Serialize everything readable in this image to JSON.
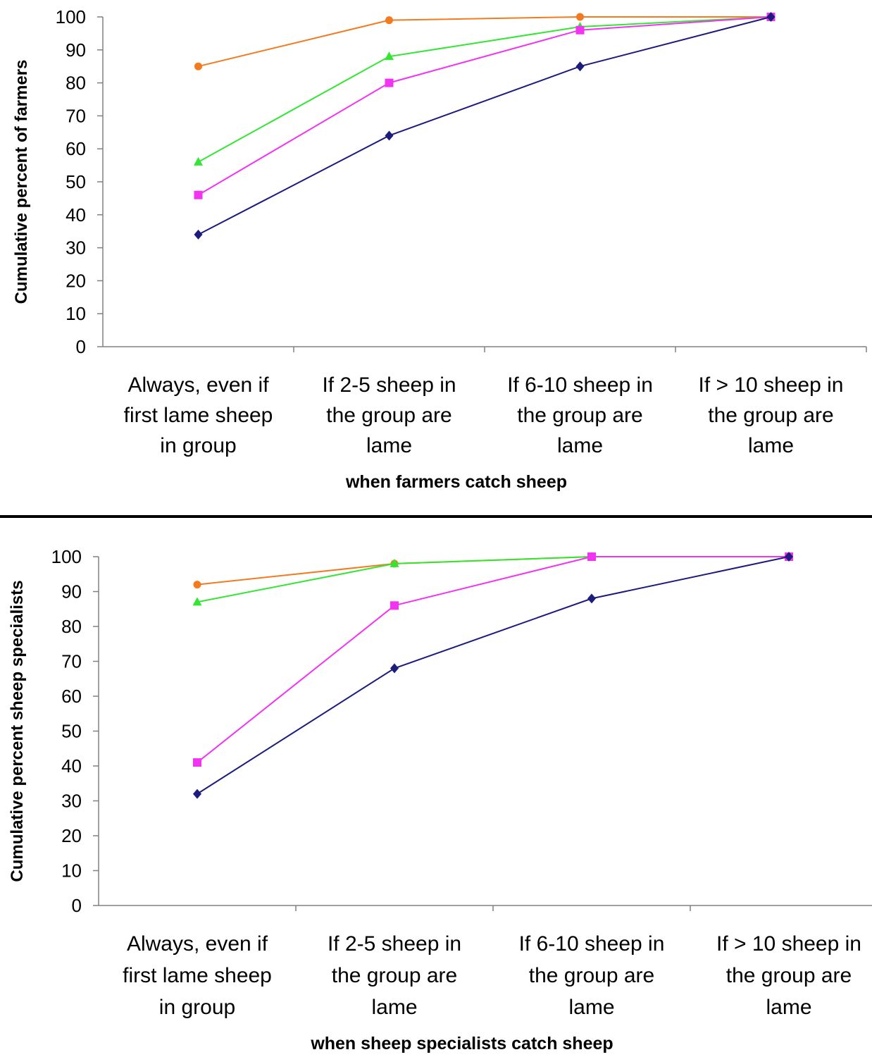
{
  "chart_data": [
    {
      "type": "line",
      "xlabel": "when farmers catch sheep",
      "ylabel": "Cumulative percent of farmers",
      "ylim": [
        0,
        100
      ],
      "yticks": [
        "0",
        "10",
        "20",
        "30",
        "40",
        "50",
        "60",
        "70",
        "80",
        "90",
        "100"
      ],
      "categories": [
        [
          "Always, even if",
          "first lame sheep",
          "in group"
        ],
        [
          "If 2-5 sheep in",
          "the group are",
          "lame"
        ],
        [
          "If 6-10 sheep in",
          "the group are",
          "lame"
        ],
        [
          "If > 10 sheep in",
          "the group are",
          "lame"
        ]
      ],
      "grid": false,
      "series": [
        {
          "color": "#F47A20",
          "marker": "circle",
          "values": [
            85,
            99,
            100,
            100
          ]
        },
        {
          "color": "#33E633",
          "marker": "triangle",
          "values": [
            56,
            88,
            97,
            100
          ]
        },
        {
          "color": "#F233F2",
          "marker": "square",
          "values": [
            46,
            80,
            96,
            100
          ]
        },
        {
          "color": "#1C1C7E",
          "marker": "diamond",
          "values": [
            34,
            64,
            85,
            100
          ]
        }
      ]
    },
    {
      "type": "line",
      "xlabel": "when sheep specialists catch sheep",
      "ylabel": "Cumulative percent sheep specialists",
      "ylim": [
        0,
        100
      ],
      "yticks": [
        "0",
        "10",
        "20",
        "30",
        "40",
        "50",
        "60",
        "70",
        "80",
        "90",
        "100"
      ],
      "categories": [
        [
          "Always, even if",
          "first lame sheep",
          "in group"
        ],
        [
          "If 2-5 sheep in",
          "the group are",
          "lame"
        ],
        [
          "If 6-10 sheep in",
          "the group are",
          "lame"
        ],
        [
          "If > 10 sheep in",
          "the group are",
          "lame"
        ]
      ],
      "grid": false,
      "series": [
        {
          "color": "#F47A20",
          "marker": "circle",
          "values": [
            92,
            98,
            100,
            100
          ]
        },
        {
          "color": "#33E633",
          "marker": "triangle",
          "values": [
            87,
            98,
            100,
            100
          ]
        },
        {
          "color": "#F233F2",
          "marker": "square",
          "values": [
            41,
            86,
            100,
            100
          ]
        },
        {
          "color": "#1C1C7E",
          "marker": "diamond",
          "values": [
            32,
            68,
            88,
            100
          ]
        }
      ]
    }
  ]
}
